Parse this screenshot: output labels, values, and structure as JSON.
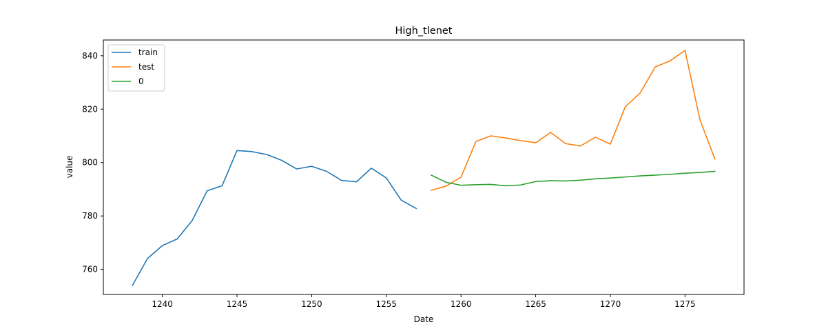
{
  "chart_data": {
    "type": "line",
    "title": "High_tlenet",
    "xlabel": "Date",
    "ylabel": "value",
    "xlim": [
      1236.05,
      1278.95
    ],
    "ylim": [
      750.6,
      845.9
    ],
    "xticks": [
      1240,
      1245,
      1250,
      1255,
      1260,
      1265,
      1270,
      1275
    ],
    "yticks": [
      760,
      780,
      800,
      820,
      840
    ],
    "grid": false,
    "legend_position": "top-left",
    "series": [
      {
        "name": "train",
        "color": "#1f77b4",
        "x": [
          1238,
          1239,
          1240,
          1241,
          1242,
          1243,
          1244,
          1245,
          1246,
          1247,
          1248,
          1249,
          1250,
          1251,
          1252,
          1253,
          1254,
          1255,
          1256,
          1257
        ],
        "y": [
          754.0,
          764.0,
          768.9,
          771.4,
          778.3,
          789.4,
          791.3,
          804.5,
          804.1,
          803.0,
          800.8,
          797.6,
          798.6,
          796.7,
          793.3,
          792.8,
          797.9,
          794.2,
          785.9,
          782.8
        ]
      },
      {
        "name": "test",
        "color": "#ff7f0e",
        "x": [
          1258,
          1259,
          1260,
          1261,
          1262,
          1263,
          1264,
          1265,
          1266,
          1267,
          1268,
          1269,
          1270,
          1271,
          1272,
          1273,
          1274,
          1275,
          1276,
          1277
        ],
        "y": [
          789.6,
          791.2,
          794.5,
          807.9,
          810.0,
          809.2,
          808.2,
          807.4,
          811.3,
          807.1,
          806.2,
          809.5,
          806.9,
          820.9,
          826.1,
          835.8,
          838.1,
          842.0,
          816.0,
          801.3
        ]
      },
      {
        "name": "0",
        "color": "#2ca02c",
        "x": [
          1258,
          1259,
          1260,
          1261,
          1262,
          1263,
          1264,
          1265,
          1266,
          1267,
          1268,
          1269,
          1270,
          1271,
          1272,
          1273,
          1274,
          1275,
          1276,
          1277
        ],
        "y": [
          795.3,
          792.6,
          791.5,
          791.7,
          791.8,
          791.3,
          791.6,
          792.9,
          793.2,
          793.1,
          793.4,
          793.9,
          794.2,
          794.6,
          795.0,
          795.3,
          795.6,
          796.0,
          796.3,
          796.7
        ]
      }
    ]
  }
}
